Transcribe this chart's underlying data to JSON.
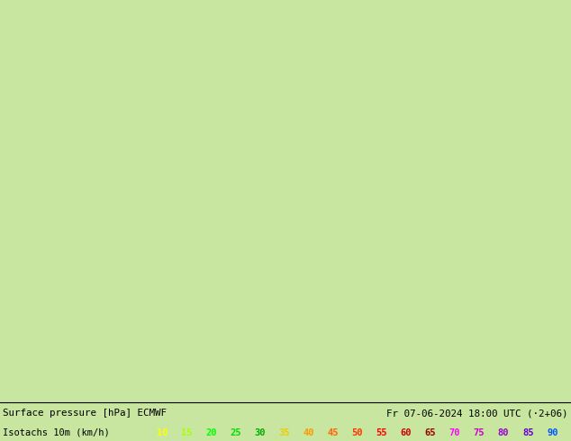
{
  "title_line1": "Surface pressure [hPa] ECMWF",
  "title_line2": "Fr 07-06-2024 18:00 UTC (·2+06)",
  "label_left": "Isotachs 10m (km/h)",
  "bg_color": "#c8e6a0",
  "bottom_bar_color": "#e8e8e8",
  "text_color": "#000000",
  "figsize": [
    6.34,
    4.9
  ],
  "dpi": 100,
  "isotach_values_colored": [
    {
      "val": "10",
      "color": "#ffff00"
    },
    {
      "val": "15",
      "color": "#aaff00"
    },
    {
      "val": "20",
      "color": "#00ff00"
    },
    {
      "val": "25",
      "color": "#00dd00"
    },
    {
      "val": "30",
      "color": "#00aa00"
    },
    {
      "val": "35",
      "color": "#eecc00"
    },
    {
      "val": "40",
      "color": "#ff9900"
    },
    {
      "val": "45",
      "color": "#ff6600"
    },
    {
      "val": "50",
      "color": "#ff3300"
    },
    {
      "val": "55",
      "color": "#ff0000"
    },
    {
      "val": "60",
      "color": "#cc0000"
    },
    {
      "val": "65",
      "color": "#990000"
    },
    {
      "val": "70",
      "color": "#ff00ff"
    },
    {
      "val": "75",
      "color": "#cc00cc"
    },
    {
      "val": "80",
      "color": "#9900cc"
    },
    {
      "val": "85",
      "color": "#6600cc"
    },
    {
      "val": "90",
      "color": "#0055ff"
    }
  ]
}
